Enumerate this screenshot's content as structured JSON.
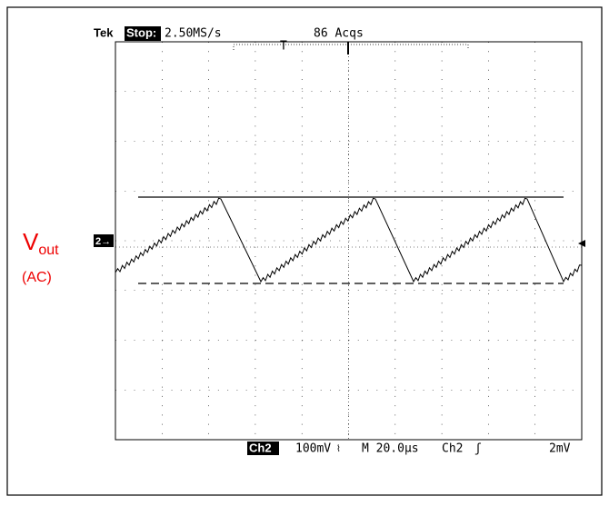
{
  "header": {
    "brand": "Tek",
    "state": "Stop:",
    "sample_rate": "2.50MS/s",
    "acquisitions": "86 Acqs",
    "trigger_marker": "T"
  },
  "channel_marker": "2→",
  "signal_label": {
    "main": "V",
    "subscript": "out",
    "coupling": "(AC)"
  },
  "footer": {
    "channel": "Ch2",
    "volts_per_div": "100mV",
    "bandwidth_icon": "⌇",
    "time_per_div": "M 20.0µs",
    "trigger_channel": "Ch2",
    "trigger_slope": "ʃ",
    "trigger_level": "2mV"
  }
}
